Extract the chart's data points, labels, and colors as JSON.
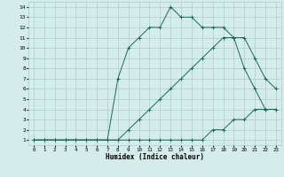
{
  "xlabel": "Humidex (Indice chaleur)",
  "background_color": "#d4ecea",
  "grid_color": "#aacfcb",
  "line_color": "#1a6b5a",
  "xlim": [
    -0.5,
    23.5
  ],
  "ylim": [
    0.5,
    14.5
  ],
  "xticks": [
    0,
    1,
    2,
    3,
    4,
    5,
    6,
    7,
    8,
    9,
    10,
    11,
    12,
    13,
    14,
    15,
    16,
    17,
    18,
    19,
    20,
    21,
    22,
    23
  ],
  "yticks": [
    1,
    2,
    3,
    4,
    5,
    6,
    7,
    8,
    9,
    10,
    11,
    12,
    13,
    14
  ],
  "line1_x": [
    0,
    1,
    2,
    3,
    4,
    5,
    6,
    7,
    8,
    9,
    10,
    11,
    12,
    13,
    14,
    15,
    16,
    17,
    18,
    19,
    20,
    21,
    22,
    23
  ],
  "line1_y": [
    1,
    1,
    1,
    1,
    1,
    1,
    1,
    1,
    1,
    1,
    1,
    1,
    1,
    1,
    1,
    1,
    1,
    2,
    2,
    3,
    3,
    4,
    4,
    4
  ],
  "line2_x": [
    0,
    1,
    2,
    3,
    4,
    5,
    6,
    7,
    8,
    9,
    10,
    11,
    12,
    13,
    14,
    15,
    16,
    17,
    18,
    19,
    20,
    21,
    22,
    23
  ],
  "line2_y": [
    1,
    1,
    1,
    1,
    1,
    1,
    1,
    1,
    1,
    2,
    3,
    4,
    5,
    6,
    7,
    8,
    9,
    10,
    11,
    11,
    11,
    9,
    7,
    6
  ],
  "line3_x": [
    0,
    1,
    2,
    3,
    4,
    5,
    6,
    7,
    8,
    9,
    10,
    11,
    12,
    13,
    14,
    15,
    16,
    17,
    18,
    19,
    20,
    21,
    22,
    23
  ],
  "line3_y": [
    1,
    1,
    1,
    1,
    1,
    1,
    1,
    1,
    7,
    10,
    11,
    12,
    12,
    14,
    13,
    13,
    12,
    12,
    12,
    11,
    8,
    6,
    4,
    4
  ]
}
